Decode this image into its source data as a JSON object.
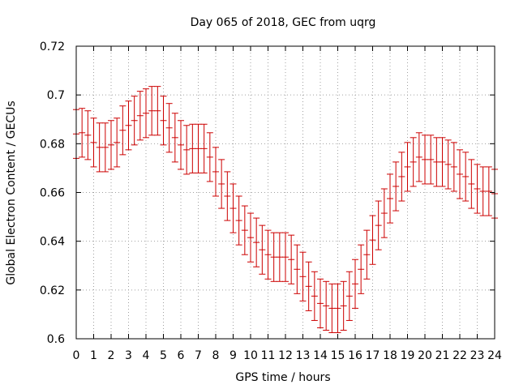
{
  "chart_data": {
    "type": "scatter",
    "title": "Day 065 of 2018, GEC from uqrg",
    "xlabel": "GPS time / hours",
    "ylabel": "Global Electron Content / GECUs",
    "xlim": [
      0,
      24
    ],
    "ylim": [
      0.6,
      0.72
    ],
    "xticks": [
      "0",
      "1",
      "2",
      "3",
      "4",
      "5",
      "6",
      "7",
      "8",
      "9",
      "10",
      "11",
      "12",
      "13",
      "14",
      "15",
      "16",
      "17",
      "18",
      "19",
      "20",
      "21",
      "22",
      "23",
      "24"
    ],
    "yticks": [
      "0.6",
      "0.62",
      "0.64",
      "0.66",
      "0.68",
      "0.7",
      "0.72"
    ],
    "grid": true,
    "error": 0.01,
    "series": [
      {
        "color": "#cc0000",
        "x": [
          0,
          0.333,
          0.667,
          1,
          1.333,
          1.667,
          2,
          2.333,
          2.667,
          3,
          3.333,
          3.667,
          4,
          4.333,
          4.667,
          5,
          5.333,
          5.667,
          6,
          6.333,
          6.667,
          7,
          7.333,
          7.667,
          8,
          8.333,
          8.667,
          9,
          9.333,
          9.667,
          10,
          10.333,
          10.667,
          11,
          11.333,
          11.667,
          12,
          12.333,
          12.667,
          13,
          13.333,
          13.667,
          14,
          14.333,
          14.667,
          15,
          15.333,
          15.667,
          16,
          16.333,
          16.667,
          17,
          17.333,
          17.667,
          18,
          18.333,
          18.667,
          19,
          19.333,
          19.667,
          20,
          20.333,
          20.667,
          21,
          21.333,
          21.667,
          22,
          22.333,
          22.667,
          23,
          23.333,
          23.667,
          24
        ],
        "y": [
          0.684,
          0.6845,
          0.6835,
          0.6805,
          0.6785,
          0.6785,
          0.6795,
          0.6805,
          0.6855,
          0.6875,
          0.6895,
          0.6915,
          0.6925,
          0.6935,
          0.6935,
          0.6895,
          0.6865,
          0.6825,
          0.6795,
          0.6775,
          0.678,
          0.678,
          0.678,
          0.6745,
          0.6685,
          0.6635,
          0.6585,
          0.6535,
          0.6485,
          0.6445,
          0.6415,
          0.6395,
          0.6365,
          0.6345,
          0.6335,
          0.6335,
          0.6335,
          0.6325,
          0.6285,
          0.6255,
          0.6215,
          0.6175,
          0.6145,
          0.6135,
          0.6125,
          0.6125,
          0.6135,
          0.6175,
          0.6225,
          0.6285,
          0.6345,
          0.6405,
          0.6465,
          0.6515,
          0.6575,
          0.6625,
          0.6665,
          0.6705,
          0.6725,
          0.6745,
          0.6735,
          0.6735,
          0.6725,
          0.6725,
          0.6715,
          0.6705,
          0.6675,
          0.6665,
          0.6635,
          0.6615,
          0.6605,
          0.6605,
          0.6595
        ]
      }
    ]
  }
}
